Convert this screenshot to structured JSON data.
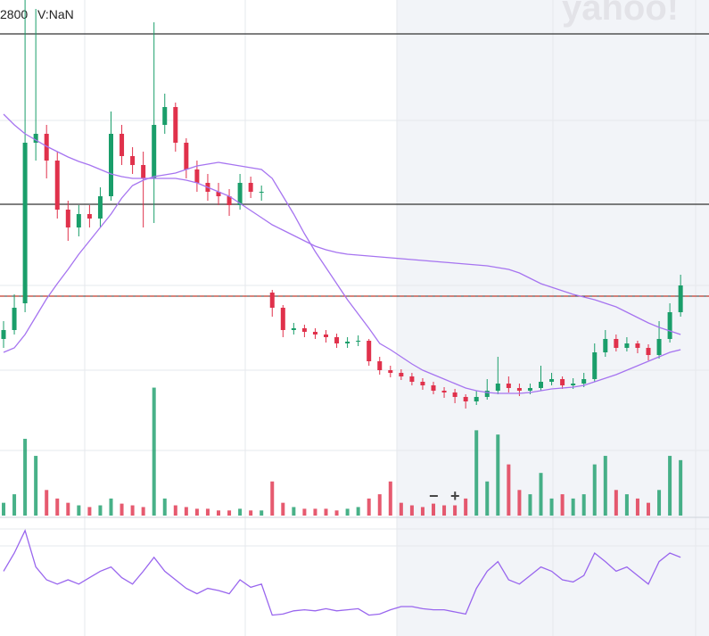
{
  "header": {
    "price_label": "2800",
    "volume_label": "V:NaN"
  },
  "watermark": "yahoo!",
  "zoom_out": "−",
  "zoom_in": "+",
  "chart_data": {
    "type": "candlestick",
    "up_color": "#1a9e6a",
    "down_color": "#e0314b",
    "ma_color": "#a674f0",
    "rsi_color": "#9966ee",
    "ylim": [
      0,
      470
    ],
    "levels": [
      {
        "value": 432,
        "style": "solid",
        "color": "#333333"
      },
      {
        "value": 241,
        "style": "solid",
        "color": "#333333"
      },
      {
        "value": 138,
        "style": "dashed",
        "color": "#c0392b"
      }
    ],
    "open": [
      90,
      100,
      130,
      310,
      320,
      290,
      235,
      215,
      230,
      225,
      250,
      320,
      295,
      285,
      270,
      330,
      350,
      310,
      280,
      265,
      255,
      250,
      240,
      265,
      255,
      142,
      125,
      100,
      102,
      98,
      95,
      92,
      85,
      87,
      88,
      65,
      55,
      52,
      48,
      42,
      38,
      32,
      30,
      25,
      20,
      25,
      32,
      40,
      35,
      32,
      35,
      42,
      45,
      38,
      40,
      45,
      75,
      90,
      80,
      85,
      80,
      72,
      90,
      120
    ],
    "high": [
      110,
      140,
      470,
      460,
      330,
      300,
      245,
      240,
      240,
      260,
      345,
      330,
      305,
      300,
      445,
      365,
      355,
      315,
      290,
      275,
      265,
      258,
      275,
      272,
      262,
      145,
      128,
      108,
      106,
      102,
      100,
      96,
      92,
      94,
      90,
      70,
      60,
      56,
      52,
      46,
      42,
      36,
      34,
      28,
      32,
      45,
      70,
      48,
      40,
      40,
      60,
      52,
      48,
      46,
      52,
      85,
      100,
      95,
      92,
      88,
      84,
      110,
      130,
      162
    ],
    "low": [
      80,
      95,
      120,
      290,
      270,
      225,
      200,
      205,
      215,
      215,
      245,
      285,
      275,
      215,
      220,
      320,
      300,
      270,
      255,
      245,
      240,
      228,
      235,
      248,
      245,
      115,
      92,
      95,
      92,
      90,
      86,
      80,
      80,
      82,
      60,
      50,
      47,
      44,
      38,
      33,
      28,
      24,
      18,
      12,
      16,
      22,
      28,
      30,
      26,
      28,
      32,
      38,
      34,
      34,
      36,
      42,
      70,
      76,
      76,
      74,
      66,
      68,
      86,
      115
    ],
    "close": [
      100,
      125,
      310,
      320,
      290,
      235,
      215,
      230,
      225,
      250,
      320,
      295,
      285,
      270,
      330,
      350,
      310,
      280,
      265,
      255,
      250,
      240,
      265,
      255,
      255,
      125,
      100,
      102,
      98,
      95,
      92,
      85,
      87,
      88,
      65,
      55,
      52,
      48,
      42,
      38,
      32,
      30,
      25,
      20,
      25,
      32,
      40,
      35,
      32,
      35,
      42,
      45,
      38,
      40,
      45,
      75,
      90,
      80,
      85,
      80,
      72,
      90,
      120,
      150
    ],
    "ma_long": [
      342,
      330,
      320,
      313,
      306,
      300,
      294,
      289,
      285,
      280,
      275,
      272,
      270,
      270,
      270,
      270,
      270,
      268,
      265,
      260,
      255,
      250,
      242,
      234,
      226,
      218,
      212,
      206,
      200,
      194,
      190,
      187,
      185,
      184,
      183,
      182,
      181,
      180,
      179,
      178,
      177,
      176,
      175,
      174,
      173,
      172,
      170,
      168,
      164,
      158,
      152,
      148,
      144,
      140,
      137,
      134,
      130,
      126,
      120,
      114,
      108,
      103,
      99,
      95
    ],
    "ma_short": [
      75,
      80,
      95,
      115,
      135,
      152,
      168,
      185,
      200,
      215,
      230,
      248,
      262,
      268,
      272,
      274,
      276,
      280,
      284,
      286,
      288,
      286,
      284,
      282,
      280,
      270,
      250,
      230,
      208,
      188,
      170,
      152,
      134,
      118,
      102,
      85,
      78,
      70,
      62,
      55,
      50,
      45,
      40,
      35,
      32,
      30,
      29,
      29,
      29,
      30,
      32,
      34,
      35,
      36,
      38,
      42,
      46,
      50,
      55,
      60,
      65,
      70,
      75,
      78
    ],
    "volume": [
      15,
      25,
      90,
      70,
      30,
      20,
      15,
      12,
      10,
      12,
      20,
      14,
      12,
      10,
      150,
      20,
      12,
      10,
      8,
      8,
      6,
      6,
      8,
      6,
      6,
      40,
      15,
      10,
      8,
      8,
      8,
      6,
      8,
      10,
      20,
      25,
      40,
      15,
      12,
      10,
      14,
      12,
      12,
      20,
      100,
      40,
      95,
      60,
      30,
      25,
      50,
      20,
      25,
      20,
      25,
      60,
      70,
      30,
      25,
      20,
      15,
      30,
      70,
      65
    ],
    "volume_lim": [
      0,
      160
    ],
    "rsi": [
      58,
      75,
      96,
      62,
      50,
      46,
      50,
      46,
      52,
      58,
      62,
      52,
      46,
      58,
      71,
      58,
      50,
      42,
      37,
      42,
      40,
      37,
      50,
      43,
      46,
      17,
      18,
      21,
      22,
      21,
      23,
      21,
      22,
      23,
      17,
      18,
      22,
      25,
      25,
      23,
      22,
      22,
      20,
      18,
      42,
      58,
      67,
      50,
      46,
      54,
      62,
      58,
      50,
      48,
      54,
      75,
      67,
      58,
      62,
      54,
      46,
      67,
      75,
      71
    ],
    "rsi_lim": [
      0,
      100
    ]
  }
}
